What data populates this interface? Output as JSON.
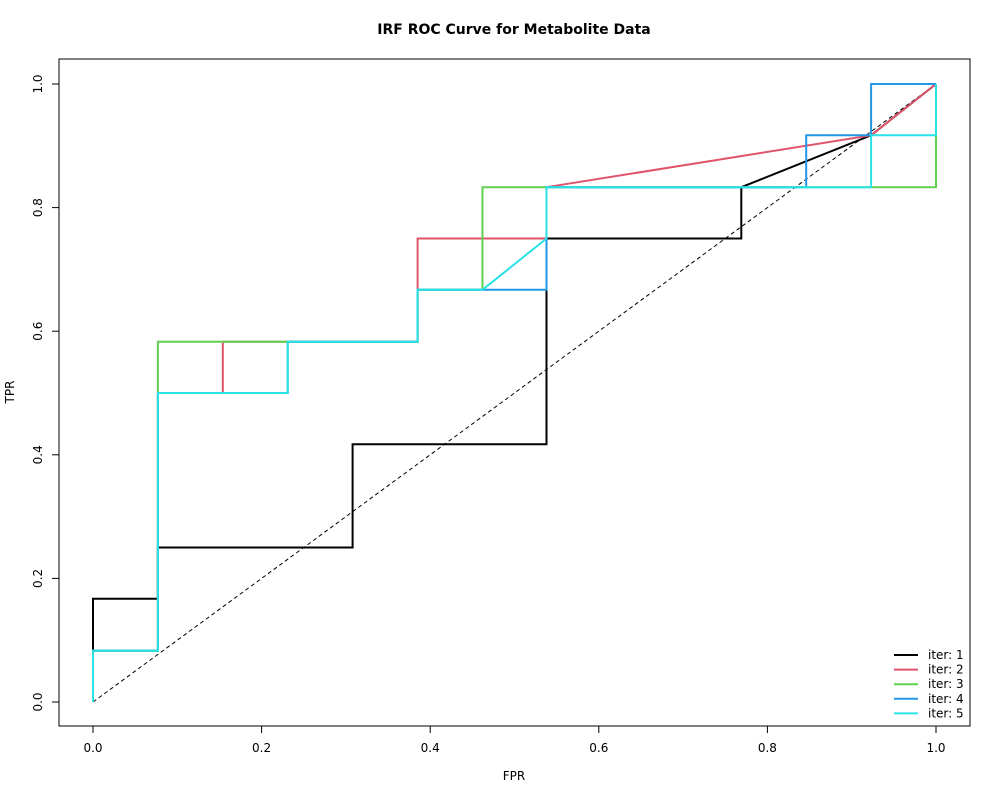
{
  "chart_data": {
    "type": "line",
    "title": "IRF ROC Curve for Metabolite Data",
    "xlabel": "FPR",
    "ylabel": "TPR",
    "xlim": [
      0,
      1
    ],
    "ylim": [
      0,
      1
    ],
    "xticks": [
      0.0,
      0.2,
      0.4,
      0.6,
      0.8,
      1.0
    ],
    "yticks": [
      0.0,
      0.2,
      0.4,
      0.6,
      0.8,
      1.0
    ],
    "xtick_labels": [
      "0.0",
      "0.2",
      "0.4",
      "0.6",
      "0.8",
      "1.0"
    ],
    "ytick_labels": [
      "0.0",
      "0.2",
      "0.4",
      "0.6",
      "0.8",
      "1.0"
    ],
    "grid": false,
    "legend_position": "bottom-right",
    "reference_line": {
      "x": [
        0,
        1
      ],
      "y": [
        0,
        1
      ],
      "style": "dashed",
      "color": "#000000"
    },
    "series": [
      {
        "name": "iter: 1",
        "color": "#000000",
        "x": [
          0,
          0,
          0,
          0.077,
          0.077,
          0.077,
          0.308,
          0.308,
          0.538,
          0.538,
          0.769,
          0.769,
          0.923,
          1
        ],
        "y": [
          0,
          0.083,
          0.167,
          0.167,
          0.25,
          0.25,
          0.25,
          0.417,
          0.417,
          0.75,
          0.75,
          0.833,
          0.917,
          1
        ]
      },
      {
        "name": "iter: 2",
        "color": "#df536b",
        "x": [
          0,
          0,
          0.077,
          0.077,
          0.154,
          0.154,
          0.385,
          0.385,
          0.538,
          0.538,
          0.923,
          1
        ],
        "y": [
          0,
          0.083,
          0.083,
          0.5,
          0.5,
          0.583,
          0.583,
          0.75,
          0.75,
          0.833,
          0.917,
          1
        ]
      },
      {
        "name": "iter: 3",
        "color": "#61d04f",
        "x": [
          0,
          0,
          0.077,
          0.077,
          0.385,
          0.385,
          0.462,
          0.462,
          1,
          1
        ],
        "y": [
          0,
          0.083,
          0.083,
          0.583,
          0.583,
          0.667,
          0.667,
          0.833,
          0.833,
          1
        ]
      },
      {
        "name": "iter: 4",
        "color": "#2297e6",
        "x": [
          0,
          0,
          0.077,
          0.077,
          0.231,
          0.231,
          0.385,
          0.385,
          0.538,
          0.538,
          0.846,
          0.846,
          0.923,
          0.923,
          1
        ],
        "y": [
          0,
          0.083,
          0.083,
          0.5,
          0.5,
          0.583,
          0.583,
          0.667,
          0.667,
          0.833,
          0.833,
          0.917,
          0.917,
          1,
          1
        ]
      },
      {
        "name": "iter: 5",
        "color": "#28e2e5",
        "x": [
          0,
          0,
          0.077,
          0.077,
          0.231,
          0.231,
          0.385,
          0.385,
          0.462,
          0.538,
          0.538,
          0.923,
          0.923,
          1,
          1
        ],
        "y": [
          0,
          0.083,
          0.083,
          0.5,
          0.5,
          0.583,
          0.583,
          0.667,
          0.667,
          0.75,
          0.833,
          0.833,
          0.917,
          0.917,
          1
        ]
      }
    ]
  }
}
